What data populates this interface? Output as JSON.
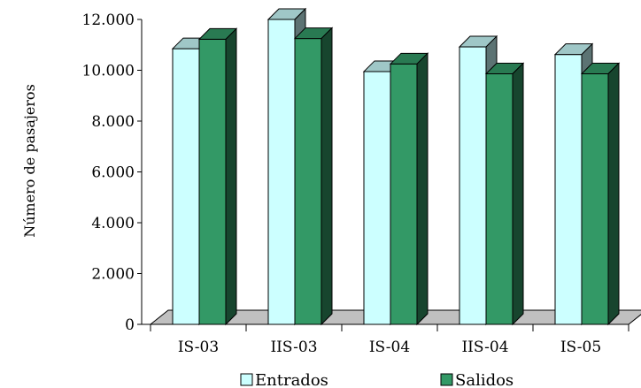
{
  "chart_data": {
    "type": "bar",
    "categories": [
      "IS-03",
      "IIS-03",
      "IS-04",
      "IIS-04",
      "IS-05"
    ],
    "series": [
      {
        "name": "Entrados",
        "values": [
          10850,
          12000,
          9950,
          10920,
          10620
        ],
        "color": "#ccffff"
      },
      {
        "name": "Salidos",
        "values": [
          11220,
          11250,
          10250,
          9860,
          9860
        ],
        "color": "#339966"
      }
    ],
    "ylabel": "Número de pasajeros",
    "ylim": [
      0,
      12000
    ],
    "yticks": [
      "0",
      "2.000",
      "4.000",
      "6.000",
      "8.000",
      "10.000",
      "12.000"
    ],
    "grid": false,
    "legend_position": "bottom",
    "style": "3d-column",
    "floor_color": "#c0c0c0"
  }
}
